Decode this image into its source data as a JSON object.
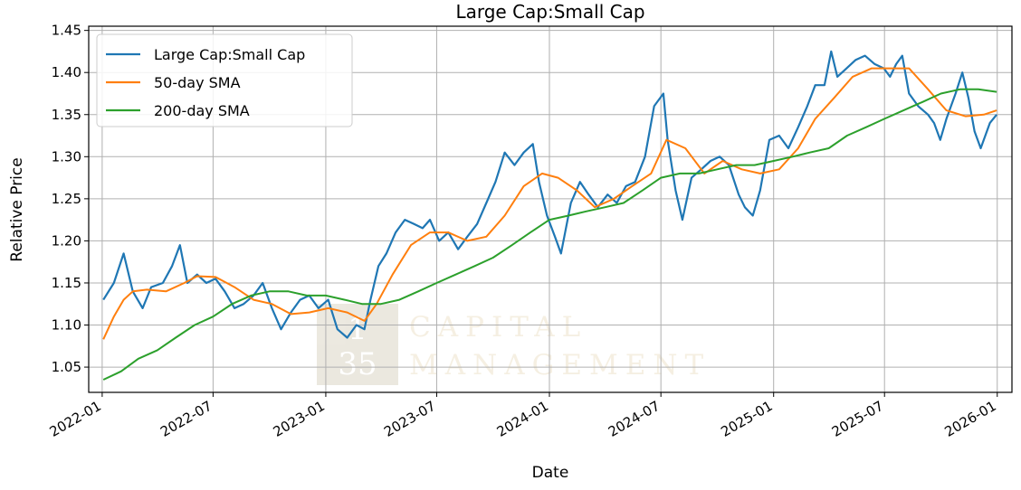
{
  "chart_data": {
    "type": "line",
    "title": "Large Cap:Small Cap",
    "xlabel": "Date",
    "ylabel": "Relative Price",
    "x_range": [
      "2021-12-10",
      "2026-01-25"
    ],
    "ylim": [
      1.02,
      1.455
    ],
    "x_ticks": [
      "2022-01",
      "2022-07",
      "2023-01",
      "2023-07",
      "2024-01",
      "2024-07",
      "2025-01",
      "2025-07",
      "2026-01"
    ],
    "y_ticks": [
      "1.05",
      "1.10",
      "1.15",
      "1.20",
      "1.25",
      "1.30",
      "1.35",
      "1.40",
      "1.45"
    ],
    "grid": true,
    "legend_position": "upper-left",
    "watermark": {
      "logo_top": "1",
      "logo_bottom": "35",
      "line1": "CAPITAL",
      "line2": "MANAGEMENT"
    },
    "series": [
      {
        "name": "Large Cap:Small Cap",
        "color": "#1f77b4",
        "points": [
          [
            "2022-01-03",
            1.13
          ],
          [
            "2022-01-20",
            1.15
          ],
          [
            "2022-02-05",
            1.185
          ],
          [
            "2022-02-20",
            1.14
          ],
          [
            "2022-03-08",
            1.12
          ],
          [
            "2022-03-22",
            1.145
          ],
          [
            "2022-04-10",
            1.15
          ],
          [
            "2022-04-25",
            1.17
          ],
          [
            "2022-05-08",
            1.195
          ],
          [
            "2022-05-20",
            1.15
          ],
          [
            "2022-06-05",
            1.16
          ],
          [
            "2022-06-20",
            1.15
          ],
          [
            "2022-07-05",
            1.155
          ],
          [
            "2022-07-20",
            1.14
          ],
          [
            "2022-08-05",
            1.12
          ],
          [
            "2022-08-20",
            1.125
          ],
          [
            "2022-09-05",
            1.135
          ],
          [
            "2022-09-20",
            1.15
          ],
          [
            "2022-10-05",
            1.12
          ],
          [
            "2022-10-20",
            1.095
          ],
          [
            "2022-11-05",
            1.115
          ],
          [
            "2022-11-20",
            1.13
          ],
          [
            "2022-12-05",
            1.135
          ],
          [
            "2022-12-20",
            1.12
          ],
          [
            "2023-01-05",
            1.13
          ],
          [
            "2023-01-20",
            1.095
          ],
          [
            "2023-02-05",
            1.085
          ],
          [
            "2023-02-20",
            1.1
          ],
          [
            "2023-03-05",
            1.095
          ],
          [
            "2023-03-15",
            1.13
          ],
          [
            "2023-03-28",
            1.17
          ],
          [
            "2023-04-10",
            1.185
          ],
          [
            "2023-04-25",
            1.21
          ],
          [
            "2023-05-10",
            1.225
          ],
          [
            "2023-05-25",
            1.22
          ],
          [
            "2023-06-08",
            1.215
          ],
          [
            "2023-06-20",
            1.225
          ],
          [
            "2023-07-05",
            1.2
          ],
          [
            "2023-07-20",
            1.21
          ],
          [
            "2023-08-05",
            1.19
          ],
          [
            "2023-08-20",
            1.205
          ],
          [
            "2023-09-05",
            1.22
          ],
          [
            "2023-09-20",
            1.245
          ],
          [
            "2023-10-05",
            1.27
          ],
          [
            "2023-10-20",
            1.305
          ],
          [
            "2023-11-05",
            1.29
          ],
          [
            "2023-11-20",
            1.305
          ],
          [
            "2023-12-05",
            1.315
          ],
          [
            "2023-12-15",
            1.27
          ],
          [
            "2023-12-28",
            1.23
          ],
          [
            "2024-01-10",
            1.205
          ],
          [
            "2024-01-20",
            1.185
          ],
          [
            "2024-02-05",
            1.245
          ],
          [
            "2024-02-20",
            1.27
          ],
          [
            "2024-03-05",
            1.255
          ],
          [
            "2024-03-20",
            1.24
          ],
          [
            "2024-04-05",
            1.255
          ],
          [
            "2024-04-20",
            1.245
          ],
          [
            "2024-05-05",
            1.265
          ],
          [
            "2024-05-20",
            1.27
          ],
          [
            "2024-06-05",
            1.3
          ],
          [
            "2024-06-20",
            1.36
          ],
          [
            "2024-07-05",
            1.375
          ],
          [
            "2024-07-12",
            1.32
          ],
          [
            "2024-07-25",
            1.26
          ],
          [
            "2024-08-05",
            1.225
          ],
          [
            "2024-08-20",
            1.275
          ],
          [
            "2024-09-05",
            1.285
          ],
          [
            "2024-09-20",
            1.295
          ],
          [
            "2024-10-05",
            1.3
          ],
          [
            "2024-10-20",
            1.29
          ],
          [
            "2024-11-05",
            1.255
          ],
          [
            "2024-11-15",
            1.24
          ],
          [
            "2024-11-28",
            1.23
          ],
          [
            "2024-12-10",
            1.26
          ],
          [
            "2024-12-25",
            1.32
          ],
          [
            "2025-01-10",
            1.325
          ],
          [
            "2025-01-25",
            1.31
          ],
          [
            "2025-02-10",
            1.335
          ],
          [
            "2025-02-25",
            1.36
          ],
          [
            "2025-03-10",
            1.385
          ],
          [
            "2025-03-25",
            1.385
          ],
          [
            "2025-04-05",
            1.425
          ],
          [
            "2025-04-15",
            1.395
          ],
          [
            "2025-04-30",
            1.405
          ],
          [
            "2025-05-15",
            1.415
          ],
          [
            "2025-05-30",
            1.42
          ],
          [
            "2025-06-15",
            1.41
          ],
          [
            "2025-06-30",
            1.405
          ],
          [
            "2025-07-10",
            1.395
          ],
          [
            "2025-07-20",
            1.41
          ],
          [
            "2025-07-30",
            1.42
          ],
          [
            "2025-08-10",
            1.375
          ],
          [
            "2025-08-25",
            1.36
          ],
          [
            "2025-09-10",
            1.35
          ],
          [
            "2025-09-20",
            1.34
          ],
          [
            "2025-09-30",
            1.32
          ],
          [
            "2025-10-10",
            1.345
          ],
          [
            "2025-10-25",
            1.375
          ],
          [
            "2025-11-05",
            1.4
          ],
          [
            "2025-11-15",
            1.37
          ],
          [
            "2025-11-25",
            1.33
          ],
          [
            "2025-12-05",
            1.31
          ],
          [
            "2025-12-20",
            1.34
          ],
          [
            "2025-12-31",
            1.35
          ]
        ]
      },
      {
        "name": "50-day SMA",
        "color": "#ff7f0e",
        "points": [
          [
            "2022-01-03",
            1.083
          ],
          [
            "2022-01-20",
            1.11
          ],
          [
            "2022-02-05",
            1.13
          ],
          [
            "2022-02-20",
            1.14
          ],
          [
            "2022-03-15",
            1.142
          ],
          [
            "2022-04-15",
            1.14
          ],
          [
            "2022-05-15",
            1.15
          ],
          [
            "2022-06-05",
            1.158
          ],
          [
            "2022-07-05",
            1.157
          ],
          [
            "2022-08-05",
            1.145
          ],
          [
            "2022-09-05",
            1.13
          ],
          [
            "2022-10-05",
            1.125
          ],
          [
            "2022-11-05",
            1.113
          ],
          [
            "2022-12-05",
            1.115
          ],
          [
            "2023-01-05",
            1.12
          ],
          [
            "2023-02-05",
            1.115
          ],
          [
            "2023-03-05",
            1.105
          ],
          [
            "2023-03-25",
            1.125
          ],
          [
            "2023-04-20",
            1.16
          ],
          [
            "2023-05-20",
            1.195
          ],
          [
            "2023-06-20",
            1.21
          ],
          [
            "2023-07-20",
            1.21
          ],
          [
            "2023-08-20",
            1.2
          ],
          [
            "2023-09-20",
            1.205
          ],
          [
            "2023-10-20",
            1.23
          ],
          [
            "2023-11-20",
            1.265
          ],
          [
            "2023-12-20",
            1.28
          ],
          [
            "2024-01-15",
            1.275
          ],
          [
            "2024-02-15",
            1.26
          ],
          [
            "2024-03-15",
            1.24
          ],
          [
            "2024-04-15",
            1.25
          ],
          [
            "2024-05-15",
            1.265
          ],
          [
            "2024-06-15",
            1.28
          ],
          [
            "2024-07-10",
            1.32
          ],
          [
            "2024-08-10",
            1.31
          ],
          [
            "2024-09-10",
            1.28
          ],
          [
            "2024-10-10",
            1.295
          ],
          [
            "2024-11-10",
            1.285
          ],
          [
            "2024-12-10",
            1.28
          ],
          [
            "2025-01-10",
            1.285
          ],
          [
            "2025-02-10",
            1.31
          ],
          [
            "2025-03-10",
            1.345
          ],
          [
            "2025-04-10",
            1.37
          ],
          [
            "2025-05-10",
            1.395
          ],
          [
            "2025-06-10",
            1.405
          ],
          [
            "2025-07-10",
            1.405
          ],
          [
            "2025-08-10",
            1.405
          ],
          [
            "2025-09-10",
            1.38
          ],
          [
            "2025-10-10",
            1.355
          ],
          [
            "2025-11-10",
            1.348
          ],
          [
            "2025-12-10",
            1.35
          ],
          [
            "2025-12-31",
            1.355
          ]
        ]
      },
      {
        "name": "200-day SMA",
        "color": "#2ca02c",
        "points": [
          [
            "2022-01-03",
            1.035
          ],
          [
            "2022-02-01",
            1.045
          ],
          [
            "2022-03-01",
            1.06
          ],
          [
            "2022-04-01",
            1.07
          ],
          [
            "2022-05-01",
            1.085
          ],
          [
            "2022-06-01",
            1.1
          ],
          [
            "2022-07-01",
            1.11
          ],
          [
            "2022-08-01",
            1.125
          ],
          [
            "2022-09-01",
            1.135
          ],
          [
            "2022-10-01",
            1.14
          ],
          [
            "2022-11-01",
            1.14
          ],
          [
            "2022-12-01",
            1.135
          ],
          [
            "2023-01-01",
            1.135
          ],
          [
            "2023-02-01",
            1.13
          ],
          [
            "2023-03-01",
            1.125
          ],
          [
            "2023-04-01",
            1.125
          ],
          [
            "2023-05-01",
            1.13
          ],
          [
            "2023-06-01",
            1.14
          ],
          [
            "2023-07-01",
            1.15
          ],
          [
            "2023-08-01",
            1.16
          ],
          [
            "2023-09-01",
            1.17
          ],
          [
            "2023-10-01",
            1.18
          ],
          [
            "2023-11-01",
            1.195
          ],
          [
            "2023-12-01",
            1.21
          ],
          [
            "2024-01-01",
            1.225
          ],
          [
            "2024-02-01",
            1.23
          ],
          [
            "2024-03-01",
            1.235
          ],
          [
            "2024-04-01",
            1.24
          ],
          [
            "2024-05-01",
            1.245
          ],
          [
            "2024-06-01",
            1.26
          ],
          [
            "2024-07-01",
            1.275
          ],
          [
            "2024-08-01",
            1.28
          ],
          [
            "2024-09-01",
            1.28
          ],
          [
            "2024-10-01",
            1.285
          ],
          [
            "2024-11-01",
            1.29
          ],
          [
            "2024-12-01",
            1.29
          ],
          [
            "2025-01-01",
            1.295
          ],
          [
            "2025-02-01",
            1.3
          ],
          [
            "2025-03-01",
            1.305
          ],
          [
            "2025-04-01",
            1.31
          ],
          [
            "2025-05-01",
            1.325
          ],
          [
            "2025-06-01",
            1.335
          ],
          [
            "2025-07-01",
            1.345
          ],
          [
            "2025-08-01",
            1.355
          ],
          [
            "2025-09-01",
            1.365
          ],
          [
            "2025-10-01",
            1.375
          ],
          [
            "2025-11-01",
            1.38
          ],
          [
            "2025-12-01",
            1.38
          ],
          [
            "2025-12-31",
            1.377
          ]
        ]
      }
    ]
  }
}
